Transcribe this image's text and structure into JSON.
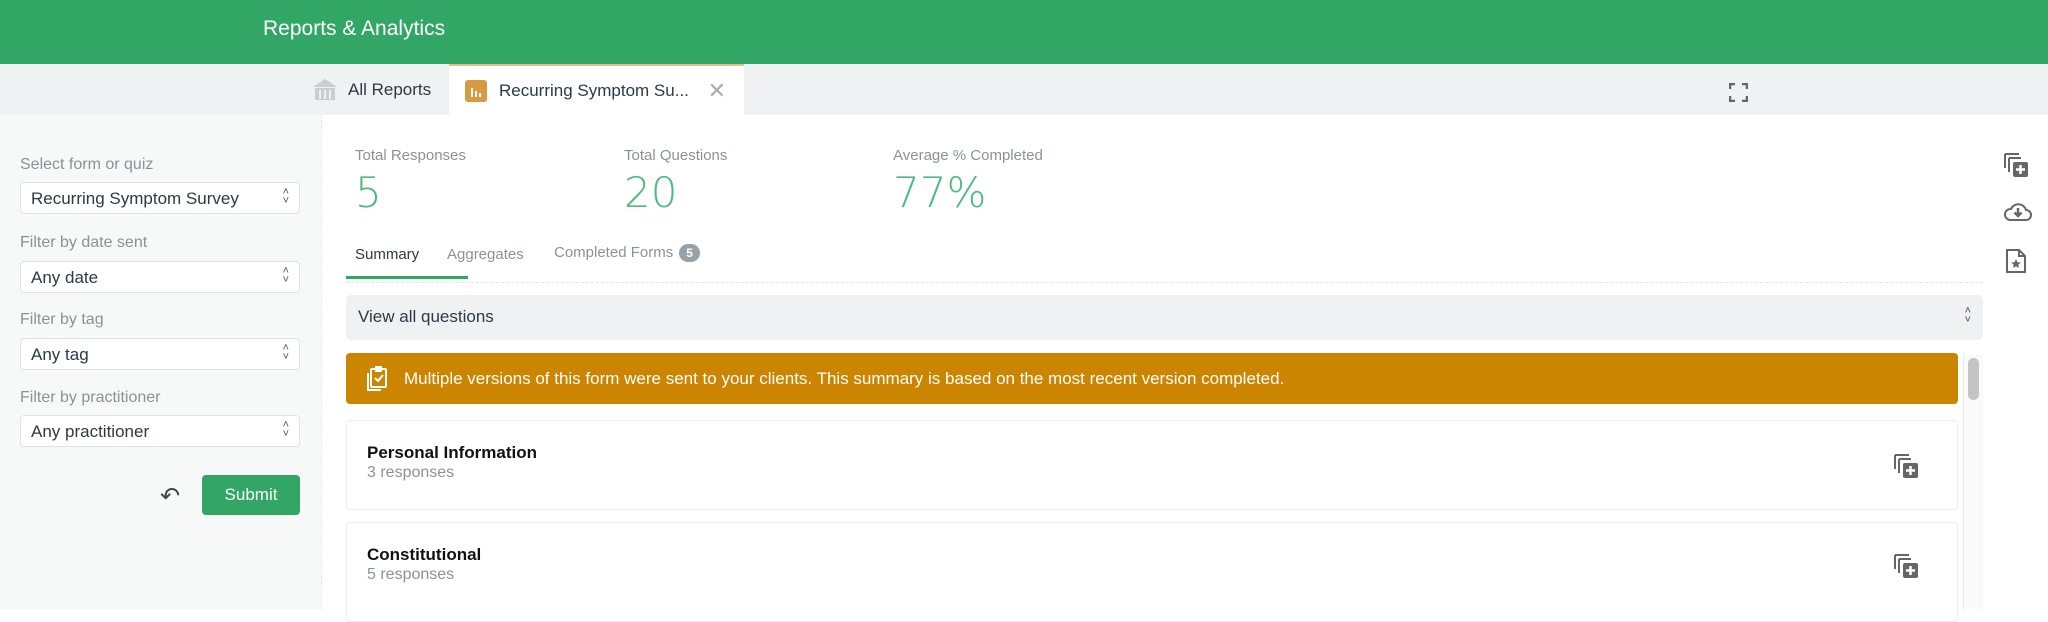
{
  "header": {
    "title": "Reports & Analytics"
  },
  "tabs": [
    {
      "label": "All Reports",
      "icon": "bank-icon"
    },
    {
      "label": "Recurring Symptom Su...",
      "icon": "bar-chart-icon",
      "active": true
    }
  ],
  "sidebar": {
    "filters": [
      {
        "label": "Select form or quiz",
        "value": "Recurring Symptom Survey"
      },
      {
        "label": "Filter by date sent",
        "value": "Any date"
      },
      {
        "label": "Filter by tag",
        "value": "Any tag"
      },
      {
        "label": "Filter by practitioner",
        "value": "Any practitioner"
      }
    ],
    "submit_label": "Submit"
  },
  "stats": [
    {
      "label": "Total Responses",
      "value": "5"
    },
    {
      "label": "Total Questions",
      "value": "20"
    },
    {
      "label": "Average % Completed",
      "value": "77%"
    }
  ],
  "subtabs": {
    "summary": "Summary",
    "aggregates": "Aggregates",
    "completed": "Completed Forms",
    "completed_count": "5"
  },
  "question_select": "View all questions",
  "banner": "Multiple versions of this form were sent to your clients. This summary is based on the most recent version completed.",
  "cards": [
    {
      "title": "Personal Information",
      "sub": "3 responses"
    },
    {
      "title": "Constitutional",
      "sub": "5 responses"
    }
  ],
  "colors": {
    "brand": "#31a665",
    "warning": "#cb8500",
    "tab_icon": "#d89a40"
  }
}
